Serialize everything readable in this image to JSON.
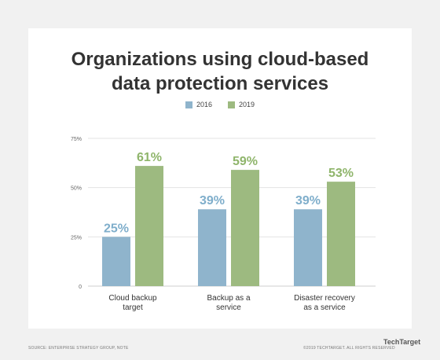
{
  "header": {
    "title_line1": "Organizations using cloud-based",
    "title_line2": "data protection services"
  },
  "legend": [
    {
      "label": "2016",
      "color": "#8fb4cc"
    },
    {
      "label": "2019",
      "color": "#9dba80"
    }
  ],
  "chart_data": {
    "type": "bar",
    "categories": [
      [
        "Cloud backup",
        "target"
      ],
      [
        "Backup as a",
        "service"
      ],
      [
        "Disaster recovery",
        "as a service"
      ]
    ],
    "series": [
      {
        "name": "2016",
        "values": [
          25,
          39,
          39
        ],
        "labels": [
          "25%",
          "39%",
          "39%"
        ],
        "color": "#8fb4cc",
        "label_color": "#7faecb"
      },
      {
        "name": "2019",
        "values": [
          61,
          59,
          53
        ],
        "labels": [
          "61%",
          "59%",
          "53%"
        ],
        "color": "#9dba80",
        "label_color": "#8fb56b"
      }
    ],
    "yticks": [
      0,
      25,
      50,
      75
    ],
    "ytick_labels": [
      "0",
      "25%",
      "50%",
      "75%"
    ],
    "ylim": [
      0,
      75
    ],
    "grid": true
  },
  "footer": {
    "source": "SOURCE: ENTERPRISE STRATEGY GROUP, NOTE",
    "copyright": "©2019 TECHTARGET. ALL RIGHTS RESERVED",
    "brand": "TechTarget"
  }
}
